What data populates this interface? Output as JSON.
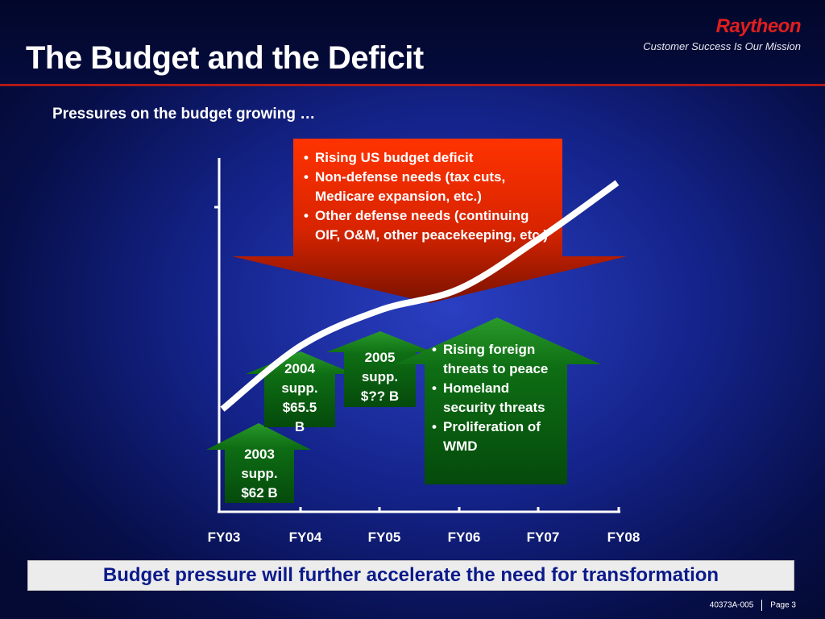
{
  "header": {
    "title": "The Budget and the Deficit",
    "logo": "Raytheon",
    "tagline": "Customer Success Is Our Mission"
  },
  "subtitle": "Pressures on the budget growing …",
  "chart_data": {
    "type": "line",
    "title": "",
    "xlabel": "",
    "ylabel": "",
    "categories": [
      "FY03",
      "FY04",
      "FY05",
      "FY06",
      "FY07",
      "FY08"
    ],
    "series": [
      {
        "values": [
          1.45,
          2.35,
          2.85,
          3.15,
          3.85,
          4.65
        ]
      }
    ],
    "ylim": [
      0,
      5
    ],
    "grid": false,
    "legend": "none",
    "line_color": "#ffffff"
  },
  "pressure_down": {
    "items": [
      "Rising US budget deficit",
      "Non-defense needs (tax cuts, Medicare expansion, etc.)",
      "Other defense needs (continuing OIF, O&M, other peacekeeping, etc.)"
    ]
  },
  "supplementals": [
    {
      "lines": [
        "2003",
        "supp.",
        "$62 B"
      ]
    },
    {
      "lines": [
        "2004",
        "supp.",
        "$65.5",
        "B"
      ]
    },
    {
      "lines": [
        "2005",
        "supp.",
        "$?? B"
      ]
    }
  ],
  "pressure_up": {
    "items": [
      "Rising foreign threats to peace",
      "Homeland security threats",
      "Proliferation of WMD"
    ]
  },
  "banner": "Budget pressure will further accelerate the need for transformation",
  "footer": {
    "doc_id": "40373A-005",
    "page": "Page 3"
  },
  "colors": {
    "red_arrow_top": "#ff3300",
    "red_arrow_bottom": "#7a1200",
    "green_arrow": "#1b8a1b",
    "green_box": "#0a5a10",
    "banner_text": "#0b1a8a"
  }
}
